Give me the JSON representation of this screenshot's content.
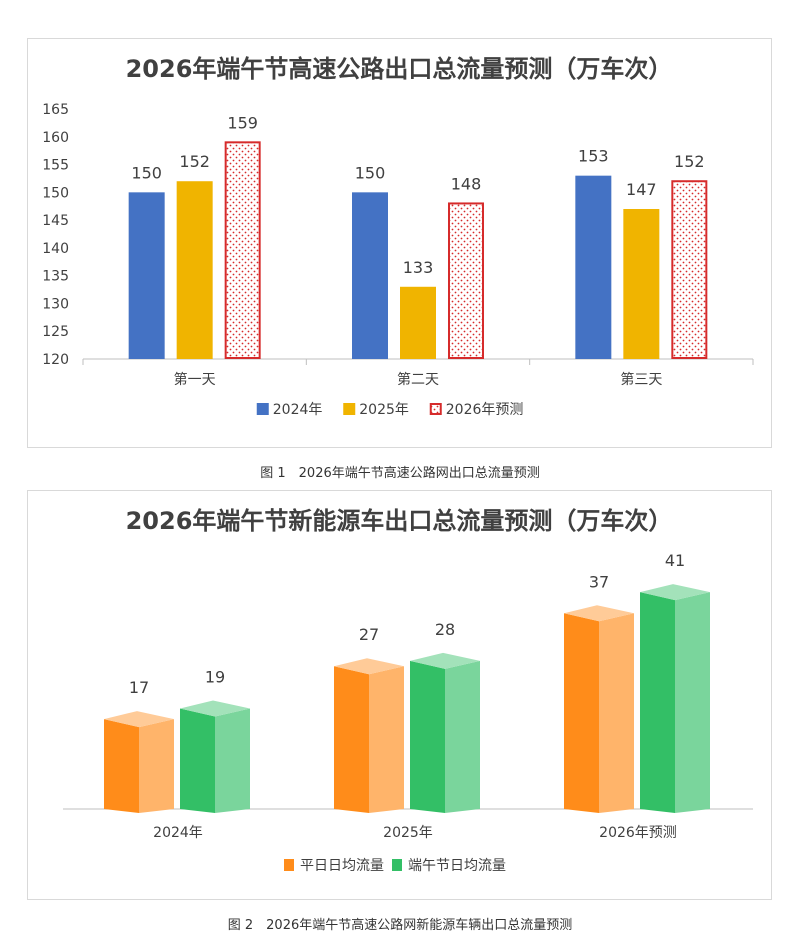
{
  "chart_data": [
    {
      "type": "bar",
      "title": "2026年端午节高速公路出口总流量预测（万车次）",
      "categories": [
        "第一天",
        "第二天",
        "第三天"
      ],
      "series": [
        {
          "name": "2024年",
          "values": [
            150,
            150,
            153
          ],
          "color": "#4472c4",
          "pattern": "solid"
        },
        {
          "name": "2025年",
          "values": [
            152,
            133,
            147
          ],
          "color": "#f0b400",
          "pattern": "solid"
        },
        {
          "name": "2026年预测",
          "values": [
            159,
            148,
            152
          ],
          "color": "#d62b2b",
          "pattern": "dotted-outline"
        }
      ],
      "yticks": [
        120,
        125,
        130,
        135,
        140,
        145,
        150,
        155,
        160,
        165
      ],
      "ylim": [
        120,
        165
      ],
      "grid": false,
      "legend_position": "bottom",
      "data_labels": true,
      "caption": "图 1　2026年端午节高速公路网出口总流量预测"
    },
    {
      "type": "bar",
      "style": "3d-column",
      "title": "2026年端午节新能源车出口总流量预测（万车次）",
      "categories": [
        "2024年",
        "2025年",
        "2026年预测"
      ],
      "series": [
        {
          "name": "平日日均流量",
          "values": [
            17,
            27,
            37
          ],
          "color": "#ff8c1a"
        },
        {
          "name": "端午节日均流量",
          "values": [
            19,
            28,
            41
          ],
          "color": "#33bf66"
        }
      ],
      "ylim": [
        0,
        45
      ],
      "grid": false,
      "legend_position": "bottom",
      "data_labels": true,
      "caption": "图 2　2026年端午节高速公路网新能源车辆出口总流量预测"
    }
  ]
}
